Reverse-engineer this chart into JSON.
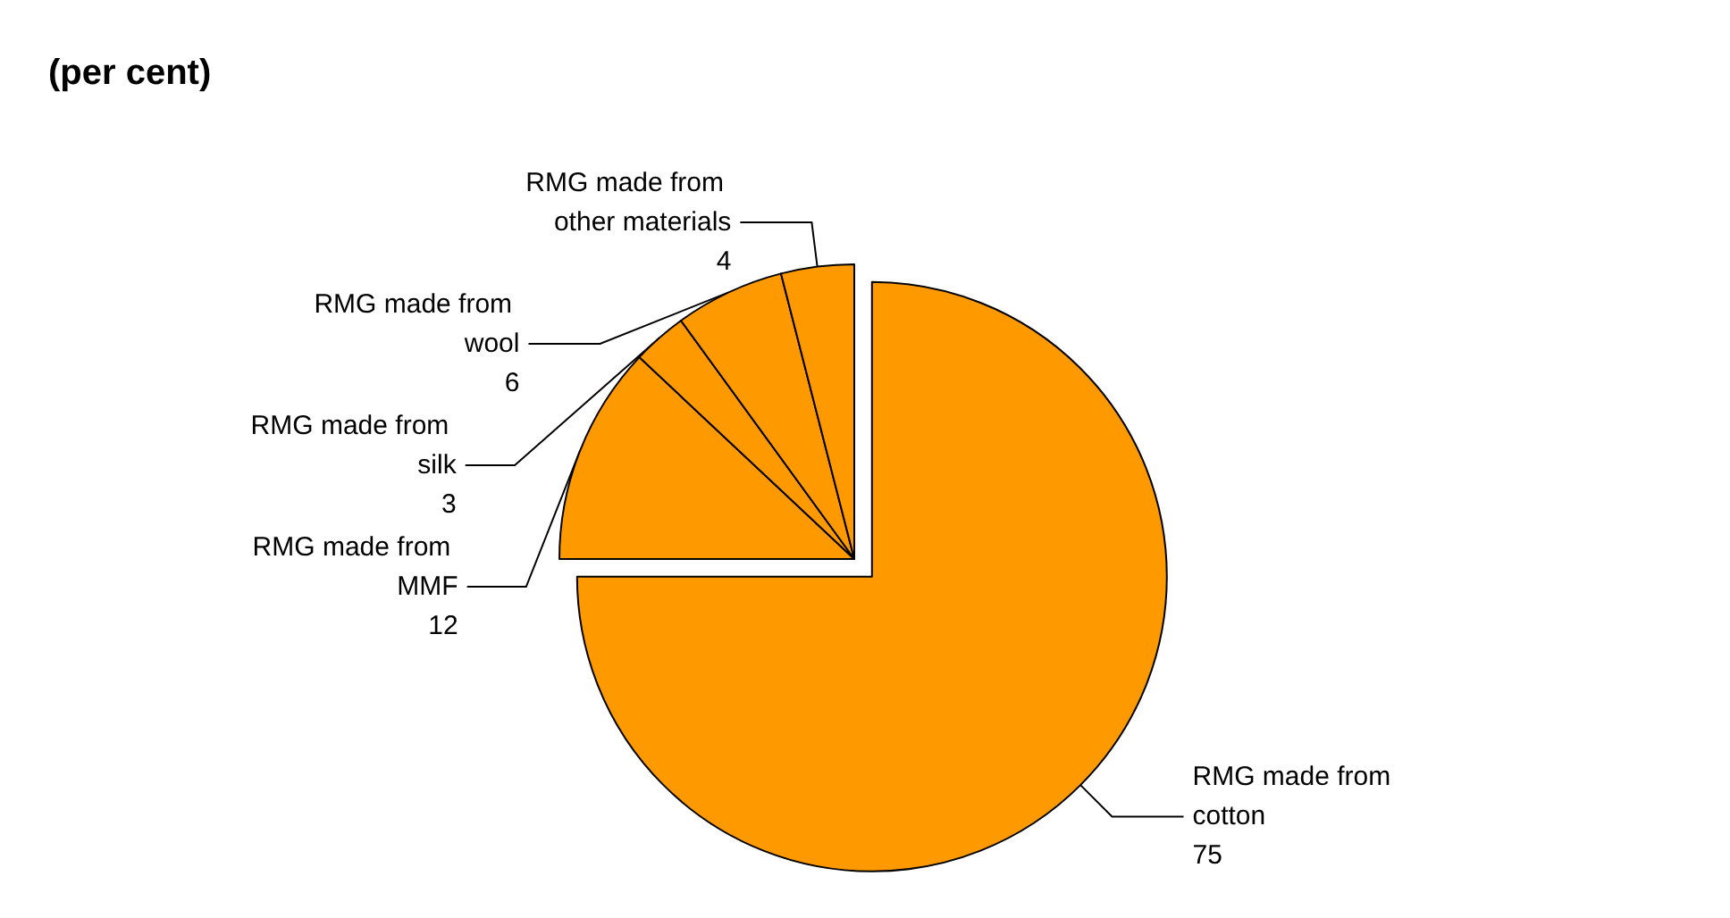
{
  "chart_data": {
    "type": "pie",
    "title": "(per cent)",
    "categories": [
      "RMG made from cotton",
      "RMG made from MMF",
      "RMG made from silk",
      "RMG made from wool",
      "RMG made from other materials"
    ],
    "values": [
      75,
      12,
      3,
      6,
      4
    ],
    "colors": [
      "#ff9900",
      "#ff9900",
      "#ff9900",
      "#ff9900",
      "#ff9900"
    ],
    "data_labels": true,
    "legend": false
  }
}
